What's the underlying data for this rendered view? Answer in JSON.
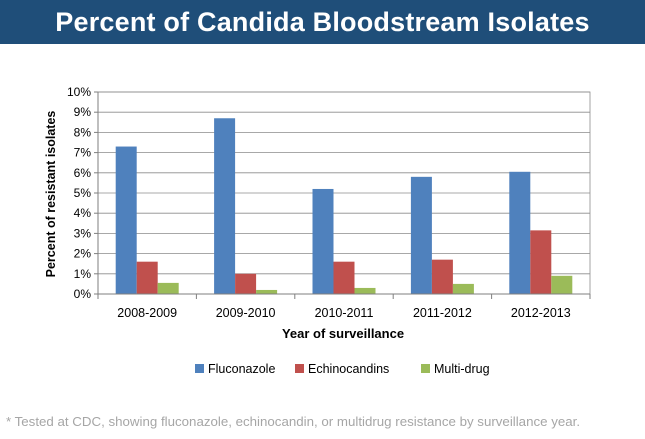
{
  "banner": {
    "title": "Percent of Candida Bloodstream Isolates"
  },
  "chart_data": {
    "type": "bar",
    "title": "",
    "xlabel": "Year of surveillance",
    "ylabel": "Percent of resistant isolates",
    "categories": [
      "2008-2009",
      "2009-2010",
      "2010-2011",
      "2011-2012",
      "2012-2013"
    ],
    "ylim": [
      0,
      10
    ],
    "yticks": [
      "0%",
      "1%",
      "2%",
      "3%",
      "4%",
      "5%",
      "6%",
      "7%",
      "8%",
      "9%",
      "10%"
    ],
    "grid": true,
    "legend_position": "bottom",
    "series": [
      {
        "name": "Fluconazole",
        "color": "#4f81bd",
        "values": [
          7.3,
          8.7,
          5.2,
          5.8,
          6.05
        ]
      },
      {
        "name": "Echinocandins",
        "color": "#c0504d",
        "values": [
          1.6,
          1.0,
          1.6,
          1.7,
          3.15
        ]
      },
      {
        "name": "Multi-drug",
        "color": "#9bbb59",
        "values": [
          0.55,
          0.2,
          0.3,
          0.5,
          0.9
        ]
      }
    ]
  },
  "footnote": "* Tested at CDC, showing fluconazole, echinocandin, or multidrug resistance by surveillance year."
}
